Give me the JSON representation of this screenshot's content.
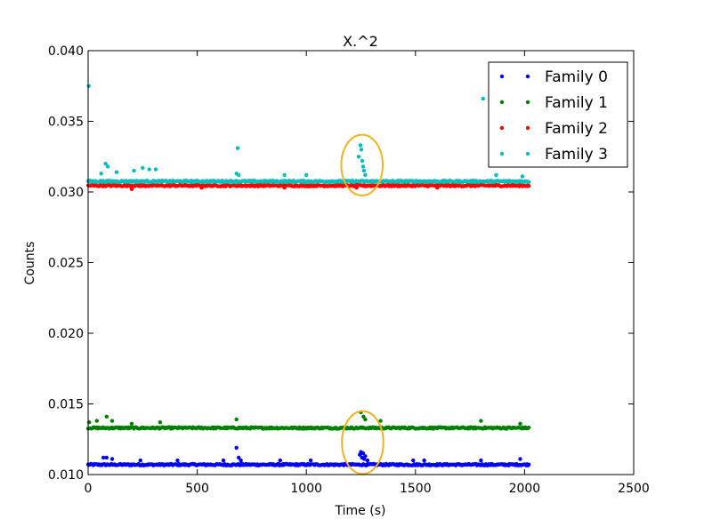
{
  "chart_data": {
    "type": "scatter",
    "title": "X.^2",
    "xlabel": "Time (s)",
    "ylabel": "Counts",
    "xlim": [
      0,
      2500
    ],
    "ylim": [
      0.01,
      0.04
    ],
    "xticks": [
      "0",
      "500",
      "1000",
      "1500",
      "2000",
      "2500"
    ],
    "yticks": [
      "0.010",
      "0.015",
      "0.020",
      "0.025",
      "0.030",
      "0.035",
      "0.040"
    ],
    "legend_position": "top-right",
    "series": [
      {
        "name": "Family 0",
        "color": "#0000ff",
        "baseline": 0.0107,
        "x_range": [
          0,
          2020
        ],
        "outliers": [
          [
            70,
            0.0112
          ],
          [
            85,
            0.0112
          ],
          [
            110,
            0.0111
          ],
          [
            240,
            0.011
          ],
          [
            410,
            0.011
          ],
          [
            620,
            0.011
          ],
          [
            680,
            0.0119
          ],
          [
            690,
            0.0112
          ],
          [
            700,
            0.011
          ],
          [
            880,
            0.011
          ],
          [
            1020,
            0.011
          ],
          [
            1245,
            0.0114
          ],
          [
            1250,
            0.0116
          ],
          [
            1255,
            0.0112
          ],
          [
            1260,
            0.0115
          ],
          [
            1265,
            0.0111
          ],
          [
            1270,
            0.0113
          ],
          [
            1280,
            0.011
          ],
          [
            1490,
            0.011
          ],
          [
            1540,
            0.011
          ],
          [
            1800,
            0.011
          ],
          [
            1980,
            0.0111
          ]
        ]
      },
      {
        "name": "Family 1",
        "color": "#008000",
        "baseline": 0.0133,
        "x_range": [
          0,
          2020
        ],
        "outliers": [
          [
            5,
            0.0137
          ],
          [
            40,
            0.0138
          ],
          [
            85,
            0.0141
          ],
          [
            110,
            0.0138
          ],
          [
            200,
            0.0136
          ],
          [
            330,
            0.0137
          ],
          [
            680,
            0.0139
          ],
          [
            1250,
            0.0144
          ],
          [
            1262,
            0.0141
          ],
          [
            1270,
            0.0139
          ],
          [
            1340,
            0.0138
          ],
          [
            1800,
            0.0138
          ],
          [
            1980,
            0.0136
          ]
        ]
      },
      {
        "name": "Family 2",
        "color": "#ff0000",
        "baseline": 0.03045,
        "x_range": [
          0,
          2020
        ],
        "outliers": [
          [
            200,
            0.0302
          ],
          [
            520,
            0.0303
          ],
          [
            900,
            0.0303
          ],
          [
            1230,
            0.0303
          ],
          [
            1600,
            0.0303
          ]
        ]
      },
      {
        "name": "Family 3",
        "color": "#00bfbf",
        "baseline": 0.03075,
        "x_range": [
          0,
          2020
        ],
        "outliers": [
          [
            3,
            0.0375
          ],
          [
            60,
            0.0313
          ],
          [
            80,
            0.032
          ],
          [
            90,
            0.0318
          ],
          [
            130,
            0.0314
          ],
          [
            210,
            0.0315
          ],
          [
            250,
            0.0317
          ],
          [
            280,
            0.0316
          ],
          [
            310,
            0.0316
          ],
          [
            680,
            0.0313
          ],
          [
            685,
            0.0331
          ],
          [
            690,
            0.0312
          ],
          [
            900,
            0.0312
          ],
          [
            1000,
            0.0312
          ],
          [
            1240,
            0.0325
          ],
          [
            1248,
            0.0333
          ],
          [
            1252,
            0.033
          ],
          [
            1256,
            0.0322
          ],
          [
            1260,
            0.0318
          ],
          [
            1264,
            0.0315
          ],
          [
            1270,
            0.0312
          ],
          [
            1810,
            0.0366
          ],
          [
            1870,
            0.0312
          ],
          [
            1990,
            0.0311
          ]
        ]
      }
    ],
    "annotations": [
      {
        "shape": "ellipse",
        "color": "#f5b21b",
        "cx": 1255,
        "cy": 0.0319,
        "rx": 95,
        "ry": 0.00215
      },
      {
        "shape": "ellipse",
        "color": "#f5b21b",
        "cx": 1258,
        "cy": 0.01227,
        "rx": 95,
        "ry": 0.00222
      }
    ]
  }
}
